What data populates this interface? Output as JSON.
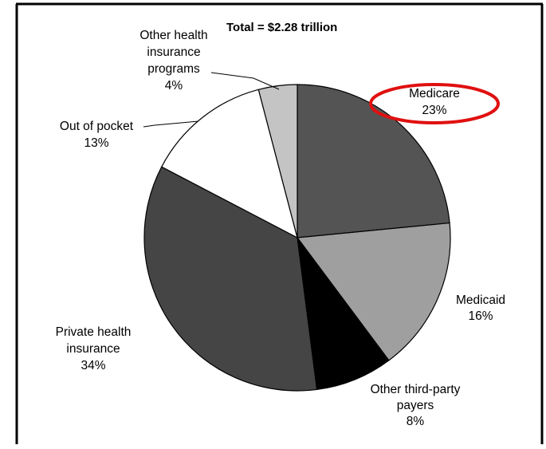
{
  "chart_data": {
    "type": "pie",
    "title": "Total = $2.28 trillion",
    "start_angle_deg": 0,
    "direction": "clockwise",
    "slices": [
      {
        "id": "medicare",
        "label_lines": [
          "Medicare",
          "23%"
        ],
        "value": 23,
        "color": "#545454"
      },
      {
        "id": "medicaid",
        "label_lines": [
          "Medicaid",
          "16%"
        ],
        "value": 16,
        "color": "#9f9f9f"
      },
      {
        "id": "other-third-party-payers",
        "label_lines": [
          "Other third-party",
          "payers",
          "8%"
        ],
        "value": 8,
        "color": "#000000"
      },
      {
        "id": "private-health-insurance",
        "label_lines": [
          "Private health",
          "insurance",
          "34%"
        ],
        "value": 34,
        "color": "#454545"
      },
      {
        "id": "out-of-pocket",
        "label_lines": [
          "Out of pocket",
          "13%"
        ],
        "value": 13,
        "color": "#ffffff"
      },
      {
        "id": "other-health-insurance-programs",
        "label_lines": [
          "Other health",
          "insurance",
          "programs",
          "4%"
        ],
        "value": 4,
        "color": "#c4c4c4"
      }
    ],
    "highlight": {
      "slice": "medicare",
      "shape": "ellipse",
      "color": "#e01010"
    }
  }
}
